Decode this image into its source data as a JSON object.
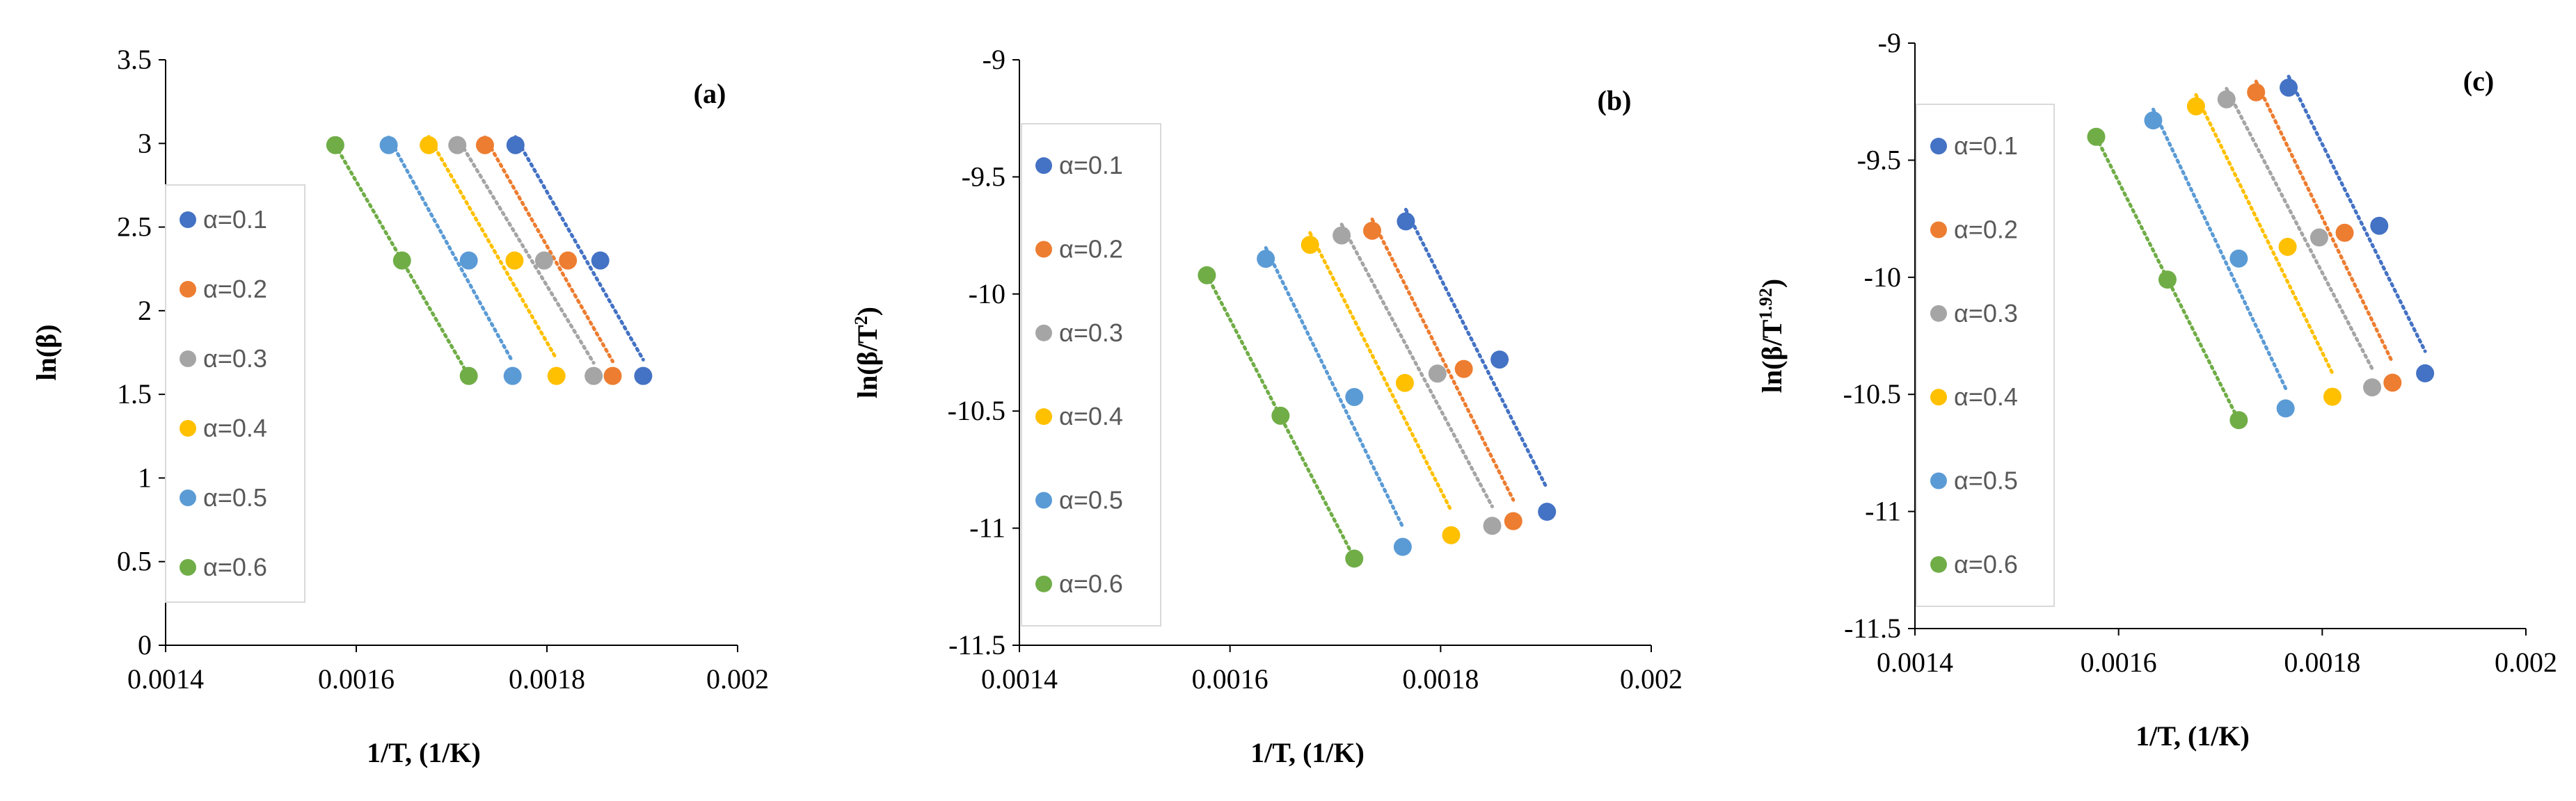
{
  "colors": {
    "alpha_0.1": "#4472C4",
    "alpha_0.2": "#ED7D31",
    "alpha_0.3": "#A5A5A5",
    "alpha_0.4": "#FFC000",
    "alpha_0.5": "#5B9BD5",
    "alpha_0.6": "#70AD47",
    "axis": "#000000",
    "legend_border": "#D9D9D9"
  },
  "chart_data": [
    {
      "type": "scatter",
      "panel_label": "(a)",
      "xlabel": "1/T, (1/K)",
      "ylabel": "ln(β)",
      "ylabel_sup": "",
      "ylabel_close": "",
      "xlim": [
        0.0014,
        0.002
      ],
      "ylim": [
        0,
        3.5
      ],
      "xticks": [
        "0.0014",
        "0.0016",
        "0.0018",
        "0.002"
      ],
      "yticks": [
        "0",
        "0.5",
        "1",
        "1.5",
        "2",
        "2.5",
        "3",
        "3.5"
      ],
      "trendlines": "dotted linear",
      "legend_position": "left",
      "series": [
        {
          "name": "α=0.1",
          "color_key": "alpha_0.1",
          "x": [
            0.001767,
            0.001856,
            0.001901
          ],
          "y": [
            2.99,
            2.3,
            1.61
          ]
        },
        {
          "name": "α=0.2",
          "color_key": "alpha_0.2",
          "x": [
            0.001735,
            0.001822,
            0.001869
          ],
          "y": [
            2.99,
            2.3,
            1.61
          ]
        },
        {
          "name": "α=0.3",
          "color_key": "alpha_0.3",
          "x": [
            0.001706,
            0.001797,
            0.001849
          ],
          "y": [
            2.99,
            2.3,
            1.61
          ]
        },
        {
          "name": "α=0.4",
          "color_key": "alpha_0.4",
          "x": [
            0.001676,
            0.001766,
            0.00181
          ],
          "y": [
            2.99,
            2.3,
            1.61
          ]
        },
        {
          "name": "α=0.5",
          "color_key": "alpha_0.5",
          "x": [
            0.001634,
            0.001718,
            0.001764
          ],
          "y": [
            2.99,
            2.3,
            1.61
          ]
        },
        {
          "name": "α=0.6",
          "color_key": "alpha_0.6",
          "x": [
            0.001578,
            0.001648,
            0.001718
          ],
          "y": [
            2.99,
            2.3,
            1.61
          ]
        }
      ]
    },
    {
      "type": "scatter",
      "panel_label": "(b)",
      "xlabel": "1/T, (1/K)",
      "ylabel": "ln(β/T",
      "ylabel_sup": "2",
      "ylabel_close": ")",
      "xlim": [
        0.0014,
        0.002
      ],
      "ylim": [
        -11.5,
        -9
      ],
      "xticks": [
        "0.0014",
        "0.0016",
        "0.0018",
        "0.002"
      ],
      "yticks": [
        "-11.5",
        "-11",
        "-10.5",
        "-10",
        "-9.5",
        "-9"
      ],
      "trendlines": "dotted linear",
      "legend_position": "left",
      "series": [
        {
          "name": "α=0.1",
          "color_key": "alpha_0.1",
          "x": [
            0.001767,
            0.001856,
            0.001901
          ],
          "y": [
            -9.69,
            -10.28,
            -10.93
          ]
        },
        {
          "name": "α=0.2",
          "color_key": "alpha_0.2",
          "x": [
            0.001735,
            0.001822,
            0.001869
          ],
          "y": [
            -9.73,
            -10.32,
            -10.97
          ]
        },
        {
          "name": "α=0.3",
          "color_key": "alpha_0.3",
          "x": [
            0.001706,
            0.001797,
            0.001849
          ],
          "y": [
            -9.75,
            -10.34,
            -10.99
          ]
        },
        {
          "name": "α=0.4",
          "color_key": "alpha_0.4",
          "x": [
            0.001676,
            0.001766,
            0.00181
          ],
          "y": [
            -9.79,
            -10.38,
            -11.03
          ]
        },
        {
          "name": "α=0.5",
          "color_key": "alpha_0.5",
          "x": [
            0.001634,
            0.001718,
            0.001764
          ],
          "y": [
            -9.85,
            -10.44,
            -11.08
          ]
        },
        {
          "name": "α=0.6",
          "color_key": "alpha_0.6",
          "x": [
            0.001578,
            0.001648,
            0.001718
          ],
          "y": [
            -9.92,
            -10.52,
            -11.13
          ]
        }
      ]
    },
    {
      "type": "scatter",
      "panel_label": "(c)",
      "xlabel": "1/T, (1/K)",
      "ylabel": "ln(β/T",
      "ylabel_sup": "1.92",
      "ylabel_close": ")",
      "xlim": [
        0.0014,
        0.002
      ],
      "ylim": [
        -11.5,
        -9
      ],
      "xticks": [
        "0.0014",
        "0.0016",
        "0.0018",
        "0.002"
      ],
      "yticks": [
        "-11.5",
        "-11",
        "-10.5",
        "-10",
        "-9.5",
        "-9"
      ],
      "trendlines": "dotted linear",
      "legend_position": "left",
      "series": [
        {
          "name": "α=0.1",
          "color_key": "alpha_0.1",
          "x": [
            0.001767,
            0.001856,
            0.001901
          ],
          "y": [
            -9.19,
            -9.78,
            -10.41
          ]
        },
        {
          "name": "α=0.2",
          "color_key": "alpha_0.2",
          "x": [
            0.001735,
            0.001822,
            0.001869
          ],
          "y": [
            -9.21,
            -9.81,
            -10.45
          ]
        },
        {
          "name": "α=0.3",
          "color_key": "alpha_0.3",
          "x": [
            0.001706,
            0.001797,
            0.001849
          ],
          "y": [
            -9.24,
            -9.83,
            -10.47
          ]
        },
        {
          "name": "α=0.4",
          "color_key": "alpha_0.4",
          "x": [
            0.001676,
            0.001766,
            0.00181
          ],
          "y": [
            -9.27,
            -9.87,
            -10.51
          ]
        },
        {
          "name": "α=0.5",
          "color_key": "alpha_0.5",
          "x": [
            0.001634,
            0.001718,
            0.001764
          ],
          "y": [
            -9.33,
            -9.92,
            -10.56
          ]
        },
        {
          "name": "α=0.6",
          "color_key": "alpha_0.6",
          "x": [
            0.001578,
            0.001648,
            0.001718
          ],
          "y": [
            -9.4,
            -10.01,
            -10.61
          ]
        }
      ]
    }
  ]
}
